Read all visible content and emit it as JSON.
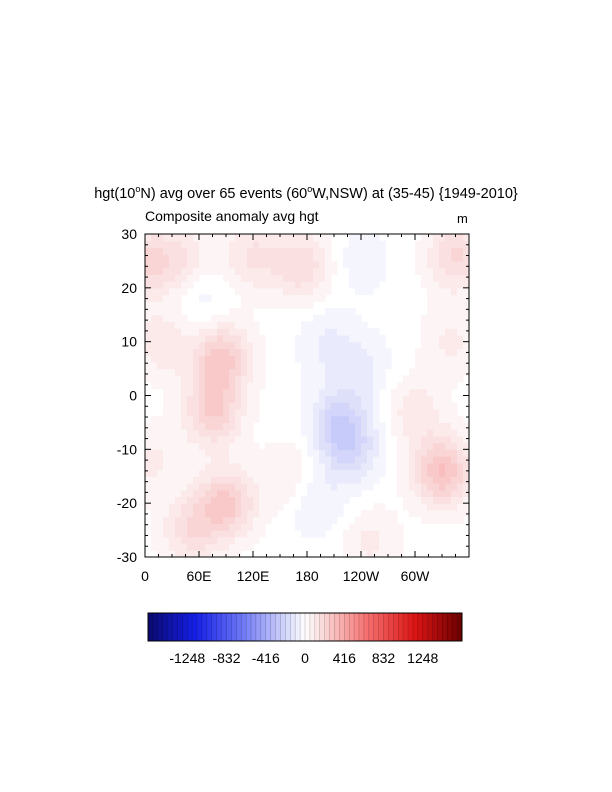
{
  "figure": {
    "title_main": "hgt(10",
    "title_sup1": "o",
    "title_mid": "N) avg over 65 events (60",
    "title_sup2": "o",
    "title_end": "W,NSW) at (35-45) {1949-2010}",
    "left_label": "Composite anomaly avg hgt",
    "right_label": "m"
  },
  "chart_data": {
    "type": "heatmap",
    "title": "hgt(10°N) avg over 65 events (60°W,NSW) at (35-45) {1949-2010}",
    "subtitle": "Composite anomaly avg hgt",
    "units": "m",
    "x_ticks": [
      "0",
      "60E",
      "120E",
      "180",
      "120W",
      "60W"
    ],
    "x_tick_values": [
      0,
      60,
      120,
      180,
      240,
      300
    ],
    "xlim": [
      0,
      360
    ],
    "y_ticks": [
      "30",
      "20",
      "10",
      "0",
      "-10",
      "-20",
      "-30"
    ],
    "y_tick_values": [
      30,
      20,
      10,
      0,
      -10,
      -20,
      -30
    ],
    "ylim": [
      -30,
      30
    ],
    "colorbar": {
      "labels": [
        "-1248",
        "-832",
        "-416",
        "0",
        "416",
        "832",
        "1248"
      ],
      "values": [
        -1248,
        -832,
        -416,
        0,
        416,
        832,
        1248
      ],
      "range": [
        -1664,
        1664
      ]
    },
    "anomaly_blobs": [
      {
        "lon": 5,
        "lat": 25,
        "value": 180
      },
      {
        "lon": 45,
        "lat": 25,
        "value": 110
      },
      {
        "lon": 120,
        "lat": 26,
        "value": 140
      },
      {
        "lon": 175,
        "lat": 24,
        "value": 170
      },
      {
        "lon": 240,
        "lat": 25,
        "value": -60
      },
      {
        "lon": 345,
        "lat": 26,
        "value": 190
      },
      {
        "lon": 60,
        "lat": 18,
        "value": -70
      },
      {
        "lon": 85,
        "lat": 7,
        "value": 260
      },
      {
        "lon": 20,
        "lat": 10,
        "value": 120
      },
      {
        "lon": 75,
        "lat": -3,
        "value": 230
      },
      {
        "lon": 90,
        "lat": -20,
        "value": 250
      },
      {
        "lon": 50,
        "lat": -25,
        "value": 160
      },
      {
        "lon": 200,
        "lat": 10,
        "value": -80
      },
      {
        "lon": 215,
        "lat": -5,
        "value": -190
      },
      {
        "lon": 230,
        "lat": -10,
        "value": -150
      },
      {
        "lon": 240,
        "lat": 5,
        "value": -90
      },
      {
        "lon": 190,
        "lat": -20,
        "value": -90
      },
      {
        "lon": 160,
        "lat": -15,
        "value": 90
      },
      {
        "lon": 300,
        "lat": -3,
        "value": 110
      },
      {
        "lon": 330,
        "lat": -14,
        "value": 290
      },
      {
        "lon": 340,
        "lat": 10,
        "value": 90
      },
      {
        "lon": 5,
        "lat": -12,
        "value": 90
      },
      {
        "lon": 250,
        "lat": -27,
        "value": 90
      }
    ]
  }
}
